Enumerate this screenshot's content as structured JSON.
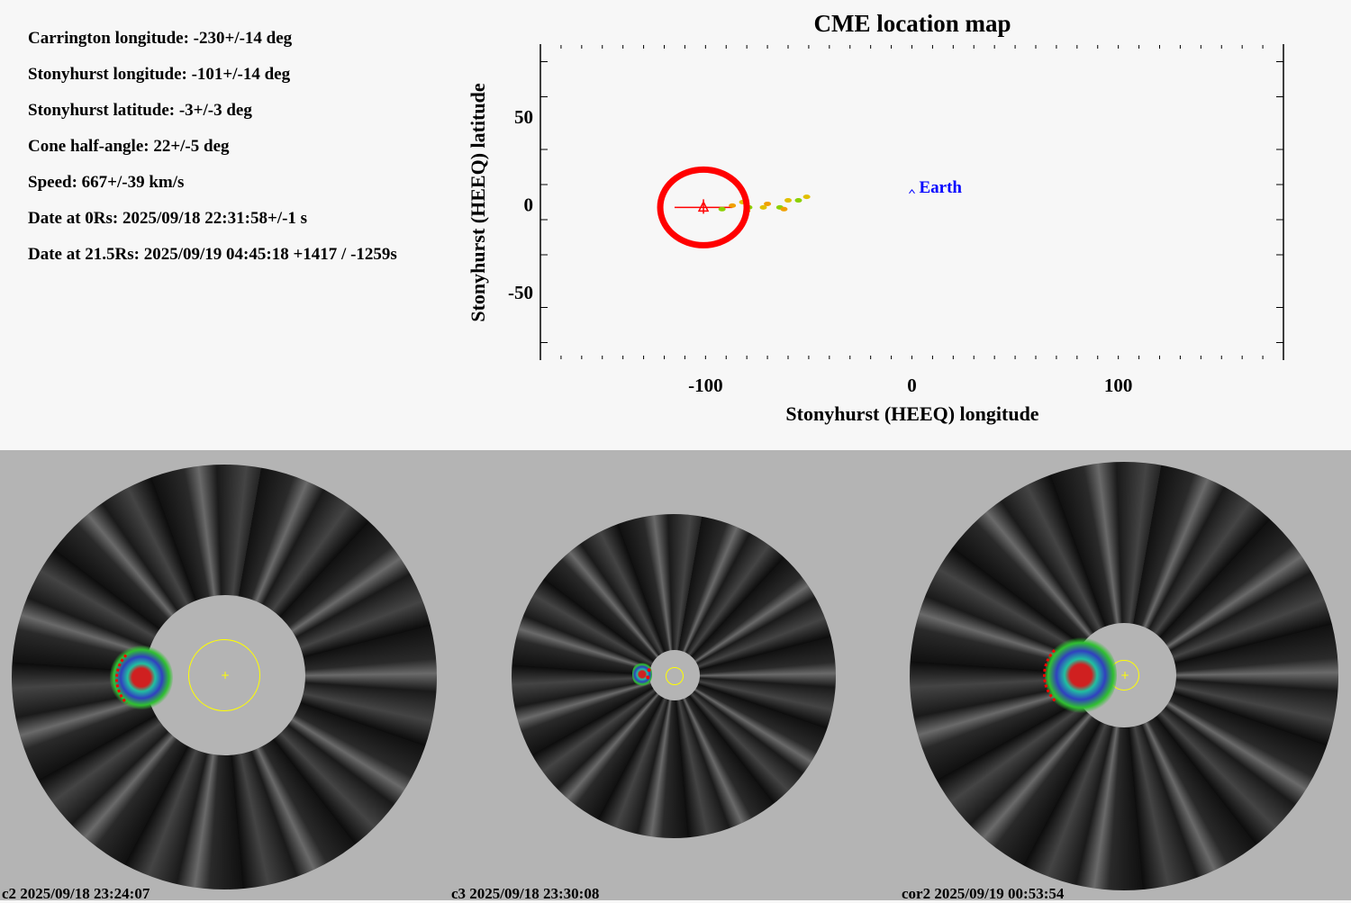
{
  "info": [
    "Carrington longitude: -230+/-14 deg",
    "Stonyhurst longitude: -101+/-14 deg",
    "Stonyhurst latitude: -3+/-3 deg",
    "Cone half-angle: 22+/-5 deg",
    "Speed: 667+/-39 km/s",
    "Date at 0Rs: 2025/09/18 22:31:58+/-1 s",
    "Date at 21.5Rs: 2025/09/19 04:45:18 +1417 / -1259s"
  ],
  "chart_data": {
    "type": "scatter",
    "title": "CME location map",
    "xlabel": "Stonyhurst (HEEQ) longitude",
    "ylabel": "Stonyhurst (HEEQ) latitude",
    "xlim": [
      -180,
      180
    ],
    "ylim": [
      -90,
      90
    ],
    "xticks": [
      "-100",
      "0",
      "100"
    ],
    "xtick_values": [
      -100,
      0,
      100
    ],
    "yticks": [
      "50",
      "0",
      "-50"
    ],
    "ytick_values": [
      50,
      0,
      -50
    ],
    "cme": {
      "lon": -101,
      "lat": -3,
      "lon_err": 14,
      "color": "#ff0000"
    },
    "earth": {
      "label": "Earth",
      "lon": 0,
      "lat": 7,
      "color": "#0000ff"
    },
    "ensemble_points": [
      [
        -92,
        -4
      ],
      [
        -87,
        -2
      ],
      [
        -82,
        0
      ],
      [
        -79,
        -3
      ],
      [
        -72,
        -3
      ],
      [
        -70,
        -1
      ],
      [
        -64,
        -3
      ],
      [
        -62,
        -4
      ],
      [
        -60,
        1
      ],
      [
        -55,
        1
      ],
      [
        -51,
        3
      ],
      [
        -80,
        -5
      ]
    ]
  },
  "panels": [
    {
      "label": "c2 2025/09/18 23:24:07"
    },
    {
      "label": "c3 2025/09/18 23:30:08"
    },
    {
      "label": "cor2 2025/09/19 00:53:54"
    }
  ]
}
